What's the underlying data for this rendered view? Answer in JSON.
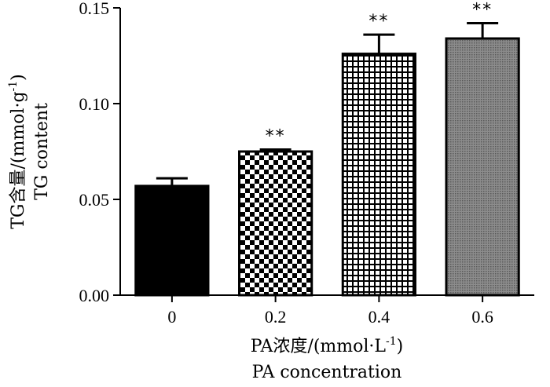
{
  "chart_data": {
    "type": "bar",
    "title": "",
    "categories": [
      "0",
      "0.2",
      "0.4",
      "0.6"
    ],
    "values": [
      0.057,
      0.075,
      0.126,
      0.134
    ],
    "errors": [
      0.004,
      0.001,
      0.01,
      0.008
    ],
    "significance": [
      "",
      "**",
      "**",
      "**"
    ],
    "patterns": [
      "solid-black",
      "checkerboard",
      "grid",
      "gray-dots"
    ],
    "ylim": [
      0,
      0.15
    ],
    "yticks": [
      "0.00",
      "0.05",
      "0.10",
      "0.15"
    ],
    "ytick_values": [
      0,
      0.05,
      0.1,
      0.15
    ],
    "ylabel": {
      "line1_main": "TG含量/(mmol·g",
      "line1_sup": "-1",
      "line1_end": ")",
      "line2": "TG content"
    },
    "xlabel": {
      "line1_main": "PA浓度/(mmol·L",
      "line1_sup": "-1",
      "line1_end": ")",
      "line2": "PA concentration"
    },
    "grid": false,
    "legend": "none"
  }
}
